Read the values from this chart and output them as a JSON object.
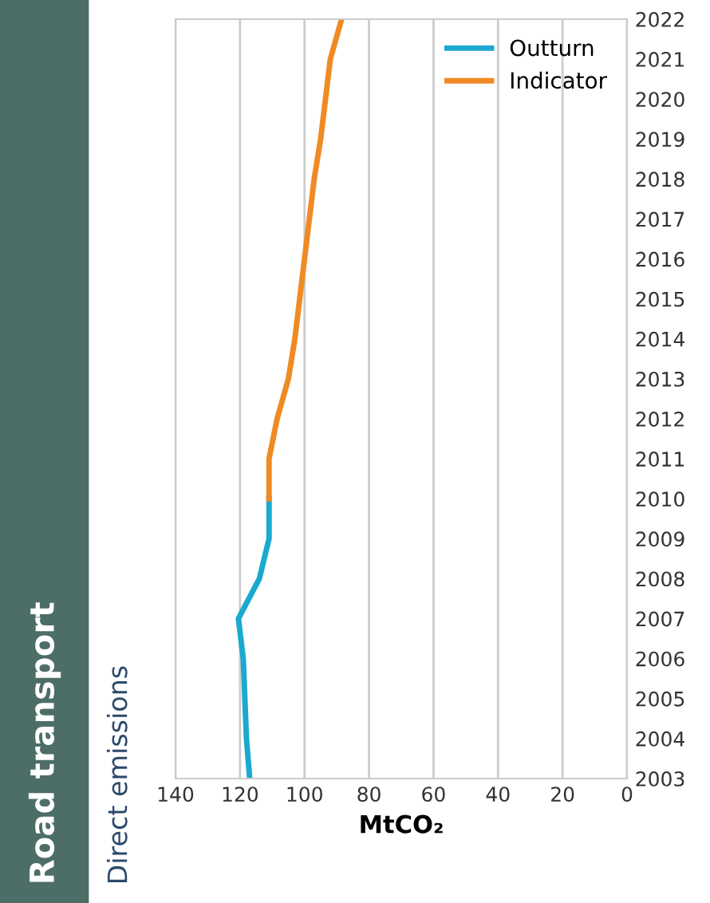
{
  "chart_data": {
    "type": "line",
    "orientation": "horizontal",
    "title": "Road transport",
    "subtitle": "Direct emissions",
    "xlabel": "MtCO₂",
    "ylim": [
      2003,
      2022
    ],
    "yticks": [
      2003,
      2004,
      2005,
      2006,
      2007,
      2008,
      2009,
      2010,
      2011,
      2012,
      2013,
      2014,
      2015,
      2016,
      2017,
      2018,
      2019,
      2020,
      2021,
      2022
    ],
    "xlim": [
      140,
      0
    ],
    "xticks": [
      0,
      20,
      40,
      60,
      80,
      100,
      120,
      140
    ],
    "grid": "x",
    "legend": "top right",
    "series": [
      {
        "name": "Outturn",
        "color": "#1ba9cf",
        "x": [
          2003,
          2004,
          2005,
          2006,
          2007,
          2008,
          2009,
          2010
        ],
        "values": [
          117,
          118,
          118.5,
          119,
          120.5,
          114,
          111,
          111
        ]
      },
      {
        "name": "Indicator",
        "color": "#f08a24",
        "x": [
          2010,
          2011,
          2012,
          2013,
          2014,
          2015,
          2016,
          2017,
          2018,
          2019,
          2020,
          2021,
          2022
        ],
        "values": [
          111,
          111,
          108.5,
          105,
          103,
          101.5,
          100,
          98.5,
          97,
          95,
          93.5,
          92,
          88.5
        ]
      }
    ]
  }
}
